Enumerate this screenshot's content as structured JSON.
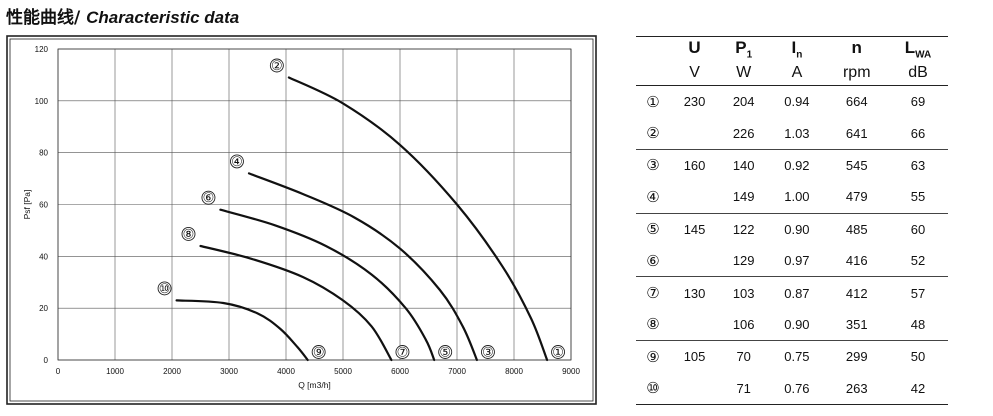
{
  "heading": {
    "cn": "性能曲线",
    "sep": "/ ",
    "en": "Characteristic data"
  },
  "chart_data": {
    "type": "line",
    "xlabel": "Q [m3/h]",
    "ylabel": "Psf [Pa]",
    "xlim": [
      0,
      9000
    ],
    "ylim": [
      0,
      120
    ],
    "xticks": [
      0,
      1000,
      2000,
      3000,
      4000,
      5000,
      6000,
      7000,
      8000,
      9000
    ],
    "yticks": [
      0,
      20,
      40,
      60,
      80,
      100,
      120
    ],
    "grid": true,
    "series": [
      {
        "name": "②",
        "label_at": "start",
        "points": [
          [
            4050,
            109
          ],
          [
            5000,
            99
          ],
          [
            6000,
            83
          ],
          [
            7000,
            60
          ],
          [
            7800,
            36
          ],
          [
            8300,
            16
          ],
          [
            8580,
            0
          ]
        ]
      },
      {
        "name": "①",
        "label_at": "end",
        "points": [
          [
            8580,
            0
          ]
        ]
      },
      {
        "name": "④",
        "label_at": "start",
        "points": [
          [
            3350,
            72
          ],
          [
            4300,
            64
          ],
          [
            5200,
            55
          ],
          [
            6000,
            43
          ],
          [
            6700,
            27
          ],
          [
            7100,
            13
          ],
          [
            7350,
            0
          ]
        ]
      },
      {
        "name": "③",
        "label_at": "end",
        "points": [
          [
            7350,
            0
          ]
        ]
      },
      {
        "name": "⑥",
        "label_at": "start",
        "points": [
          [
            2850,
            58
          ],
          [
            3800,
            52
          ],
          [
            4700,
            44
          ],
          [
            5500,
            33
          ],
          [
            6100,
            20
          ],
          [
            6450,
            8
          ],
          [
            6600,
            0
          ]
        ]
      },
      {
        "name": "⑤",
        "label_at": "end",
        "points": [
          [
            6600,
            0
          ]
        ]
      },
      {
        "name": "⑧",
        "label_at": "start",
        "points": [
          [
            2500,
            44
          ],
          [
            3400,
            39
          ],
          [
            4300,
            32
          ],
          [
            5000,
            23
          ],
          [
            5500,
            13
          ],
          [
            5850,
            0
          ]
        ]
      },
      {
        "name": "⑦",
        "label_at": "end",
        "points": [
          [
            5850,
            0
          ]
        ]
      },
      {
        "name": "⑩",
        "label_at": "start",
        "points": [
          [
            2080,
            23
          ],
          [
            2900,
            22
          ],
          [
            3500,
            18
          ],
          [
            3900,
            12
          ],
          [
            4200,
            5
          ],
          [
            4380,
            0
          ]
        ]
      },
      {
        "name": "⑨",
        "label_at": "end",
        "points": [
          [
            4380,
            0
          ]
        ]
      }
    ]
  },
  "table": {
    "headers": [
      {
        "sym": "U",
        "sub": ""
      },
      {
        "sym": "P",
        "sub": "1"
      },
      {
        "sym": "I",
        "sub": "n"
      },
      {
        "sym": "n",
        "sub": ""
      },
      {
        "sym": "L",
        "sub": "WA"
      }
    ],
    "units": [
      "V",
      "W",
      "A",
      "rpm",
      "dB"
    ],
    "rows": [
      {
        "num": "①",
        "u": "230",
        "p": "204",
        "i": "0.94",
        "n": "664",
        "l": "69"
      },
      {
        "num": "②",
        "u": "",
        "p": "226",
        "i": "1.03",
        "n": "641",
        "l": "66"
      },
      {
        "num": "③",
        "u": "160",
        "p": "140",
        "i": "0.92",
        "n": "545",
        "l": "63"
      },
      {
        "num": "④",
        "u": "",
        "p": "149",
        "i": "1.00",
        "n": "479",
        "l": "55"
      },
      {
        "num": "⑤",
        "u": "145",
        "p": "122",
        "i": "0.90",
        "n": "485",
        "l": "60"
      },
      {
        "num": "⑥",
        "u": "",
        "p": "129",
        "i": "0.97",
        "n": "416",
        "l": "52"
      },
      {
        "num": "⑦",
        "u": "130",
        "p": "103",
        "i": "0.87",
        "n": "412",
        "l": "57"
      },
      {
        "num": "⑧",
        "u": "",
        "p": "106",
        "i": "0.90",
        "n": "351",
        "l": "48"
      },
      {
        "num": "⑨",
        "u": "105",
        "p": "70",
        "i": "0.75",
        "n": "299",
        "l": "50"
      },
      {
        "num": "⑩",
        "u": "",
        "p": "71",
        "i": "0.76",
        "n": "263",
        "l": "42"
      }
    ]
  }
}
